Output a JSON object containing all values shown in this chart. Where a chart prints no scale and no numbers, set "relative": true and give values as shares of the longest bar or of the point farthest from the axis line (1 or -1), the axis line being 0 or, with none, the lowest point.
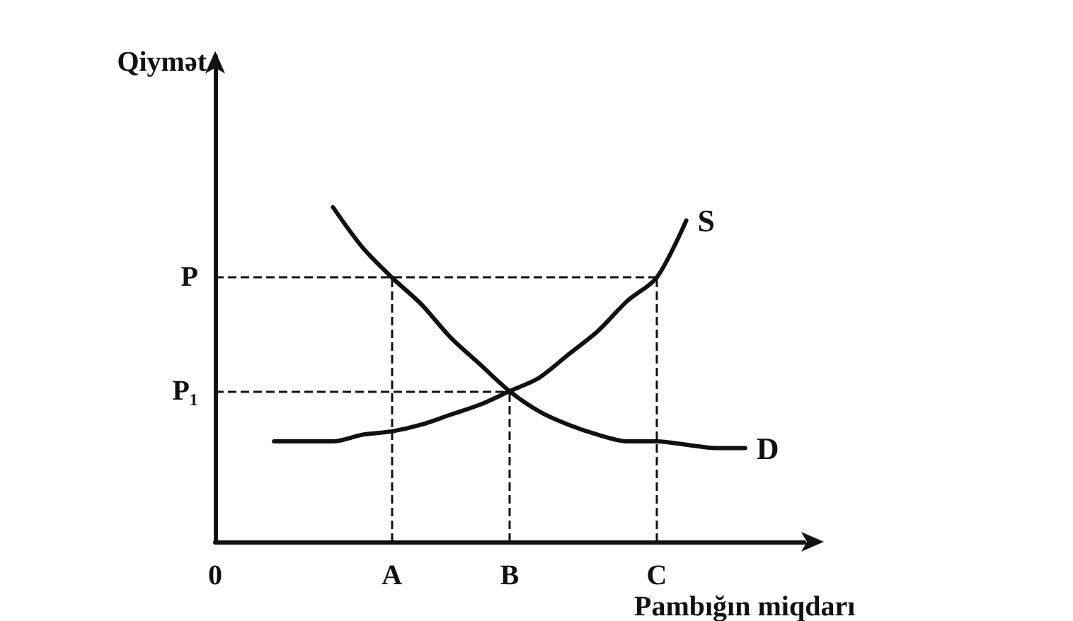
{
  "chart_data": {
    "type": "line",
    "relative": true,
    "xlabel": "Pambığın miqdarı",
    "ylabel": "Qiymət",
    "categories": [
      "0",
      null,
      null,
      null,
      null,
      null,
      "A",
      null,
      null,
      null,
      "B",
      null,
      null,
      null,
      null,
      "C",
      null,
      null,
      null,
      null,
      null
    ],
    "series": [
      {
        "name": "S",
        "color": "#111111",
        "values": [
          null,
          null,
          0.3,
          0.3,
          0.3,
          0.32,
          0.33,
          0.35,
          0.38,
          0.41,
          0.45,
          0.49,
          0.56,
          0.63,
          0.72,
          0.79,
          0.96,
          null,
          null,
          null,
          null
        ]
      },
      {
        "name": "D",
        "color": "#111111",
        "values": [
          null,
          null,
          null,
          null,
          1,
          0.88,
          0.79,
          0.71,
          0.61,
          0.53,
          0.45,
          0.39,
          0.35,
          0.32,
          0.3,
          0.3,
          0.29,
          0.28,
          0.28,
          null,
          null
        ]
      }
    ],
    "ref_lines": [
      {
        "axis": "y",
        "value": 0.79,
        "label": "P",
        "line_style": "dashed",
        "color": "#111111"
      },
      {
        "axis": "y",
        "value": 0.45,
        "label": "P₁",
        "line_style": "dashed",
        "color": "#111111"
      },
      {
        "axis": "x",
        "value": "A",
        "line_style": "dashed",
        "color": "#111111"
      },
      {
        "axis": "x",
        "value": "B",
        "line_style": "dashed",
        "color": "#111111"
      },
      {
        "axis": "x",
        "value": "C",
        "line_style": "dashed",
        "color": "#111111"
      }
    ],
    "marker": "none",
    "line_style": "solid",
    "grid": false,
    "legend": false
  }
}
